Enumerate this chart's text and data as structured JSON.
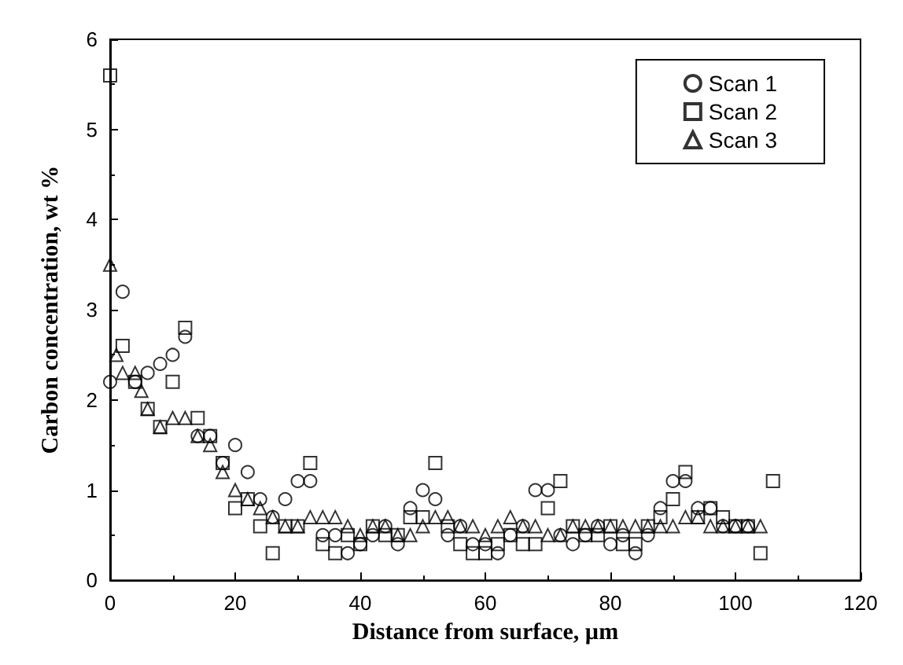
{
  "chart_data": {
    "type": "scatter",
    "xlabel": "Distance from surface, µm",
    "ylabel": "Carbon concentration, wt %",
    "xlim": [
      0,
      120
    ],
    "xticks": [
      0,
      20,
      40,
      60,
      80,
      100,
      120
    ],
    "ylim": [
      0,
      6
    ],
    "yticks": [
      0,
      1,
      2,
      3,
      4,
      5,
      6
    ],
    "grid": false,
    "legend": "top right",
    "series": [
      {
        "name": "Scan 1",
        "color": "#000000",
        "marker": "circle",
        "x": [
          0,
          2,
          4,
          6,
          8,
          10,
          12,
          14,
          16,
          18,
          20,
          22,
          24,
          26,
          28,
          30,
          32,
          34,
          36,
          38,
          40,
          42,
          44,
          46,
          48,
          50,
          52,
          54,
          56,
          58,
          60,
          62,
          64,
          66,
          68,
          70,
          72,
          74,
          76,
          78,
          80,
          82,
          84,
          86,
          88,
          90,
          92,
          94,
          96,
          98,
          100,
          102
        ],
        "values": [
          2.2,
          3.2,
          2.2,
          2.3,
          2.4,
          2.5,
          2.7,
          1.6,
          1.6,
          1.3,
          1.5,
          1.2,
          0.9,
          0.7,
          0.9,
          1.1,
          1.1,
          0.5,
          0.5,
          0.3,
          0.4,
          0.5,
          0.6,
          0.4,
          0.8,
          1.0,
          0.9,
          0.5,
          0.6,
          0.4,
          0.4,
          0.3,
          0.5,
          0.6,
          1.0,
          1.0,
          0.5,
          0.4,
          0.5,
          0.6,
          0.4,
          0.5,
          0.3,
          0.5,
          0.8,
          1.1,
          1.1,
          0.8,
          0.8,
          0.6,
          0.6,
          0.6
        ]
      },
      {
        "name": "Scan 2",
        "color": "#000000",
        "marker": "square",
        "x": [
          0,
          2,
          4,
          6,
          8,
          10,
          12,
          14,
          16,
          18,
          20,
          22,
          24,
          26,
          28,
          30,
          32,
          34,
          36,
          38,
          40,
          42,
          44,
          46,
          48,
          50,
          52,
          54,
          56,
          58,
          60,
          62,
          64,
          66,
          68,
          70,
          72,
          74,
          76,
          78,
          80,
          82,
          84,
          86,
          88,
          90,
          92,
          94,
          96,
          98,
          100,
          102,
          104,
          106
        ],
        "values": [
          5.6,
          2.6,
          2.2,
          1.9,
          1.7,
          2.2,
          2.8,
          1.8,
          1.6,
          1.3,
          0.8,
          0.9,
          0.6,
          0.3,
          0.6,
          0.6,
          1.3,
          0.4,
          0.3,
          0.5,
          0.4,
          0.6,
          0.5,
          0.5,
          0.7,
          0.7,
          1.3,
          0.6,
          0.4,
          0.3,
          0.3,
          0.4,
          0.5,
          0.4,
          0.4,
          0.8,
          1.1,
          0.6,
          0.5,
          0.5,
          0.6,
          0.4,
          0.4,
          0.6,
          0.7,
          0.9,
          1.2,
          0.7,
          0.8,
          0.7,
          0.6,
          0.6,
          0.3,
          1.1
        ]
      },
      {
        "name": "Scan 3",
        "color": "#000000",
        "marker": "triangle",
        "x": [
          0,
          1,
          2,
          4,
          5,
          6,
          8,
          10,
          12,
          14,
          16,
          18,
          20,
          22,
          24,
          26,
          28,
          30,
          32,
          34,
          36,
          38,
          40,
          42,
          44,
          46,
          48,
          50,
          52,
          54,
          56,
          58,
          60,
          62,
          64,
          66,
          68,
          70,
          72,
          74,
          76,
          78,
          80,
          82,
          84,
          86,
          88,
          90,
          92,
          94,
          96,
          98,
          100,
          102,
          104
        ],
        "values": [
          3.5,
          2.5,
          2.3,
          2.3,
          2.1,
          1.9,
          1.7,
          1.8,
          1.8,
          1.6,
          1.5,
          1.2,
          1.0,
          0.9,
          0.8,
          0.7,
          0.6,
          0.6,
          0.7,
          0.7,
          0.7,
          0.6,
          0.5,
          0.6,
          0.6,
          0.5,
          0.5,
          0.6,
          0.7,
          0.7,
          0.6,
          0.6,
          0.5,
          0.6,
          0.7,
          0.6,
          0.6,
          0.5,
          0.5,
          0.6,
          0.6,
          0.6,
          0.6,
          0.6,
          0.6,
          0.6,
          0.6,
          0.6,
          0.7,
          0.7,
          0.6,
          0.6,
          0.6,
          0.6,
          0.6
        ]
      }
    ]
  }
}
